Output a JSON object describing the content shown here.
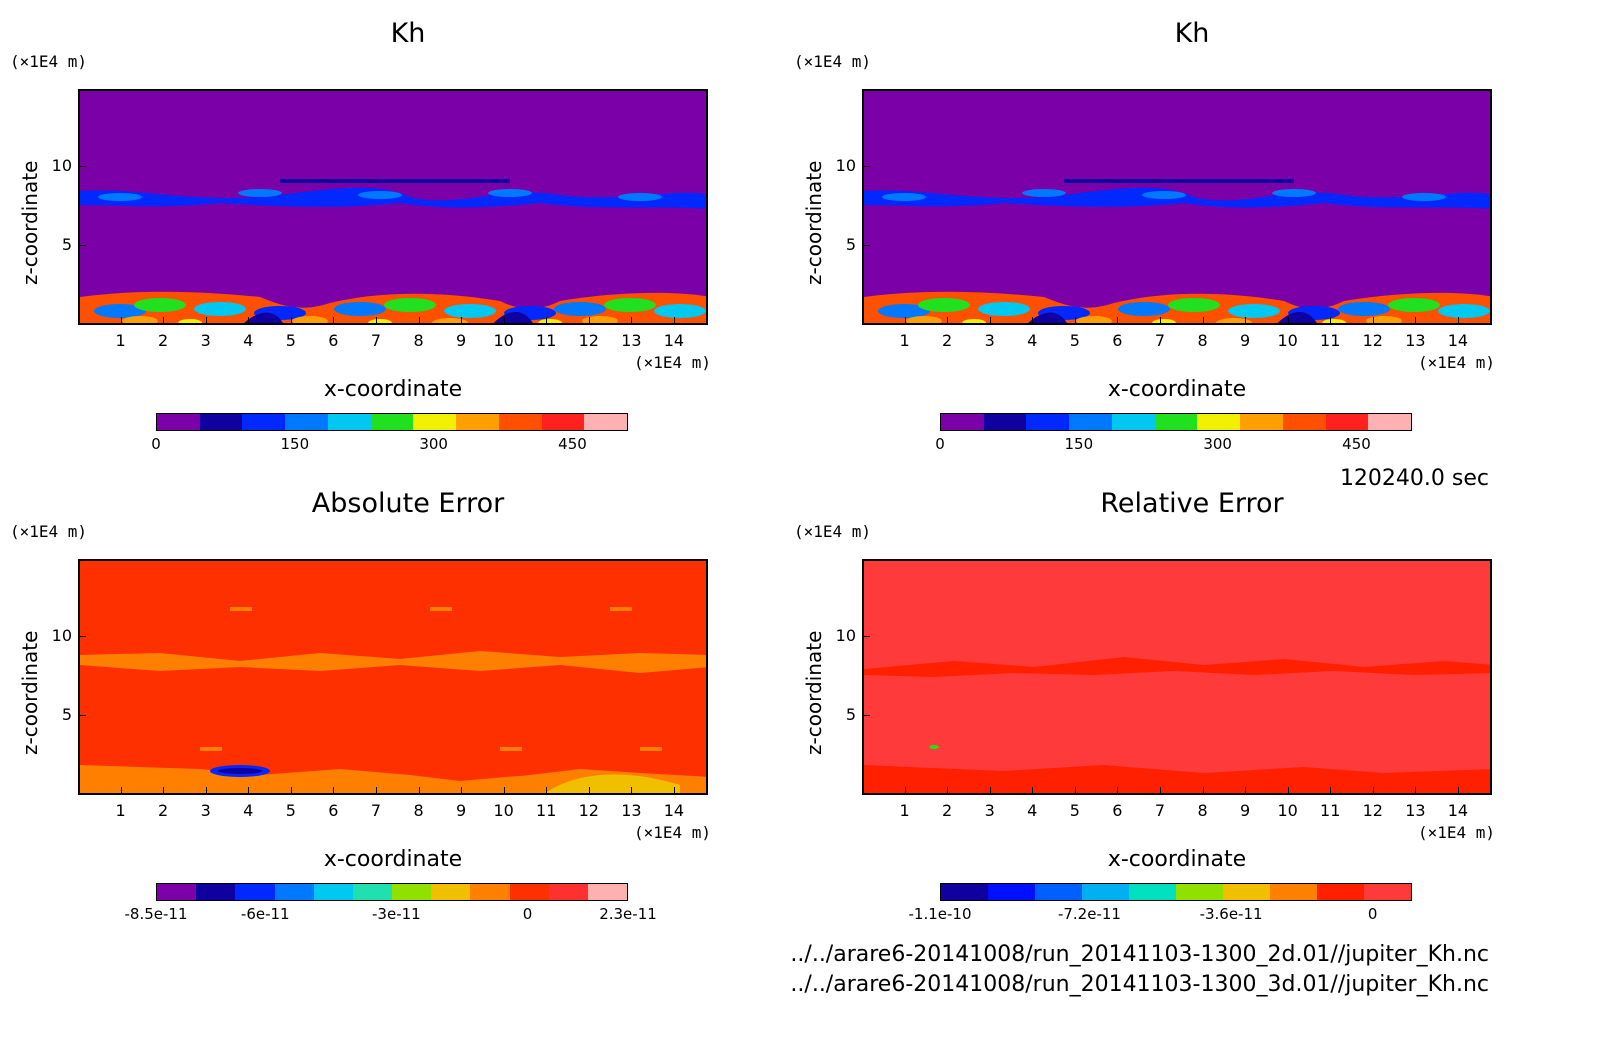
{
  "chart_data": [
    {
      "type": "heatmap",
      "title": "Kh",
      "xlabel": "x-coordinate",
      "ylabel": "z-coordinate",
      "x_unit": "(×1E4 m)",
      "y_unit": "(×1E4 m)",
      "xlim": [
        0,
        14.8
      ],
      "ylim": [
        0,
        14.8
      ],
      "x_ticks": [
        "1",
        "2",
        "3",
        "4",
        "5",
        "6",
        "7",
        "8",
        "9",
        "10",
        "11",
        "12",
        "13",
        "14"
      ],
      "y_ticks": [
        "5",
        "10"
      ],
      "colorbar": {
        "colors": [
          "#7b00a8",
          "#1000a0",
          "#0028ff",
          "#0078ff",
          "#00c8f0",
          "#20e020",
          "#f0f000",
          "#ffa000",
          "#ff5000",
          "#ff2020",
          "#ffb0b0"
        ],
        "tick_labels": [
          "0",
          "150",
          "300",
          "450"
        ],
        "tick_values": [
          0,
          150,
          300,
          450
        ],
        "vmin": 0,
        "vmax": 510
      }
    },
    {
      "type": "heatmap",
      "title": "Kh",
      "xlabel": "x-coordinate",
      "ylabel": "z-coordinate",
      "x_unit": "(×1E4 m)",
      "y_unit": "(×1E4 m)",
      "xlim": [
        0,
        14.8
      ],
      "ylim": [
        0,
        14.8
      ],
      "x_ticks": [
        "1",
        "2",
        "3",
        "4",
        "5",
        "6",
        "7",
        "8",
        "9",
        "10",
        "11",
        "12",
        "13",
        "14"
      ],
      "y_ticks": [
        "5",
        "10"
      ],
      "colorbar": {
        "colors": [
          "#7b00a8",
          "#1000a0",
          "#0028ff",
          "#0078ff",
          "#00c8f0",
          "#20e020",
          "#f0f000",
          "#ffa000",
          "#ff5000",
          "#ff2020",
          "#ffb0b0"
        ],
        "tick_labels": [
          "0",
          "150",
          "300",
          "450"
        ],
        "tick_values": [
          0,
          150,
          300,
          450
        ],
        "vmin": 0,
        "vmax": 510
      }
    },
    {
      "type": "heatmap",
      "title": "Absolute Error",
      "xlabel": "x-coordinate",
      "ylabel": "z-coordinate",
      "x_unit": "(×1E4 m)",
      "y_unit": "(×1E4 m)",
      "xlim": [
        0,
        14.8
      ],
      "ylim": [
        0,
        14.8
      ],
      "x_ticks": [
        "1",
        "2",
        "3",
        "4",
        "5",
        "6",
        "7",
        "8",
        "9",
        "10",
        "11",
        "12",
        "13",
        "14"
      ],
      "y_ticks": [
        "5",
        "10"
      ],
      "colorbar": {
        "colors": [
          "#7b00a8",
          "#1000a0",
          "#0028ff",
          "#0078ff",
          "#00c8f0",
          "#20e0b0",
          "#90e000",
          "#f0c000",
          "#ff8000",
          "#ff3000",
          "#ff3030",
          "#ffb0b0"
        ],
        "tick_labels": [
          "-8.5e-11",
          "-6e-11",
          "-3e-11",
          "0",
          "2.3e-11"
        ],
        "tick_values": [
          -8.5e-11,
          -6e-11,
          -3e-11,
          0,
          2.3e-11
        ],
        "vmin": -8.5e-11,
        "vmax": 2.3e-11
      }
    },
    {
      "type": "heatmap",
      "title": "Relative Error",
      "xlabel": "x-coordinate",
      "ylabel": "z-coordinate",
      "x_unit": "(×1E4 m)",
      "y_unit": "(×1E4 m)",
      "xlim": [
        0,
        14.8
      ],
      "ylim": [
        0,
        14.8
      ],
      "x_ticks": [
        "1",
        "2",
        "3",
        "4",
        "5",
        "6",
        "7",
        "8",
        "9",
        "10",
        "11",
        "12",
        "13",
        "14"
      ],
      "y_ticks": [
        "5",
        "10"
      ],
      "colorbar": {
        "colors": [
          "#1000a0",
          "#0010ff",
          "#0060ff",
          "#00b0f0",
          "#00e0c0",
          "#90e000",
          "#f0c000",
          "#ff8000",
          "#ff2000",
          "#ff3a3a"
        ],
        "tick_labels": [
          "-1.1e-10",
          "-7.2e-11",
          "-3.6e-11",
          "0"
        ],
        "tick_values": [
          -1.1e-10,
          -7.2e-11,
          -3.6e-11,
          0
        ],
        "vmin": -1.1e-10,
        "vmax": 1e-11
      }
    }
  ],
  "time_label": "120240.0 sec",
  "file_paths": [
    "../../arare6-20141008/run_20141103-1300_2d.01//jupiter_Kh.nc",
    "../../arare6-20141008/run_20141103-1300_3d.01//jupiter_Kh.nc"
  ]
}
